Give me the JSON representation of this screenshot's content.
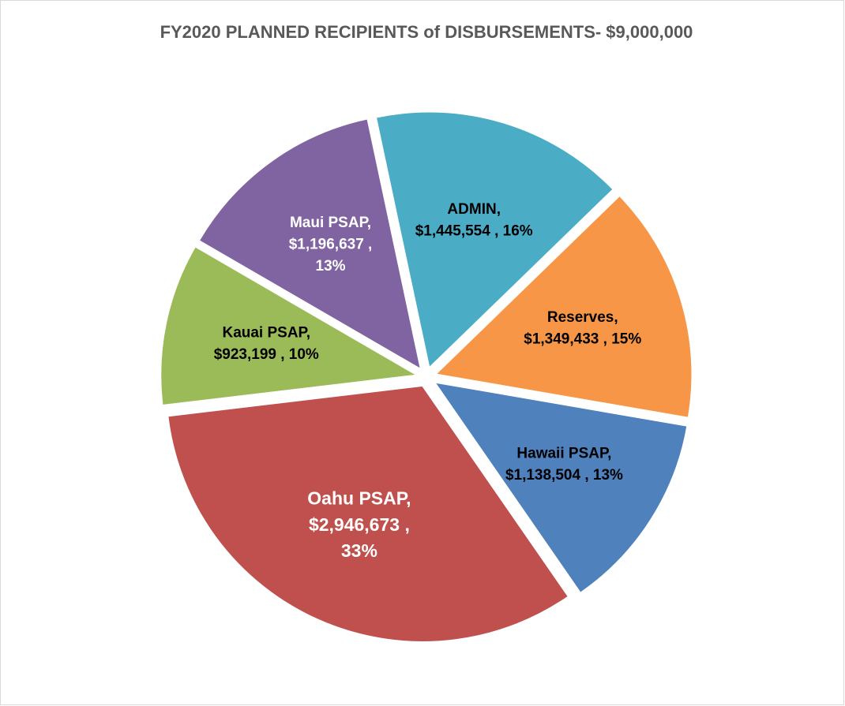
{
  "chart_data": {
    "type": "pie",
    "title": "FY2020 PLANNED RECIPIENTS of DISBURSEMENTS- $9,000,000",
    "categories": [
      "ADMIN,",
      "Reserves,",
      "Hawaii PSAP,",
      "Oahu PSAP,",
      "Kauai PSAP,",
      "Maui PSAP,"
    ],
    "values": [
      1445554,
      1349433,
      1138504,
      2946673,
      923199,
      1196637
    ],
    "value_labels": [
      [
        "$1,445,554 , 16%"
      ],
      [
        "$1,349,433 , 15%"
      ],
      [
        "$1,138,504 , 13%"
      ],
      [
        "$2,946,673 ,",
        "33%"
      ],
      [
        "$923,199 , 10%"
      ],
      [
        "$1,196,637 ,",
        "13%"
      ]
    ],
    "colors": [
      "#4bacc6",
      "#f79646",
      "#4f81bd",
      "#c0504d",
      "#9bbb59",
      "#8064a2"
    ],
    "label_colors": [
      "#000000",
      "#000000",
      "#000000",
      "#ffffff",
      "#000000",
      "#ffffff"
    ]
  }
}
